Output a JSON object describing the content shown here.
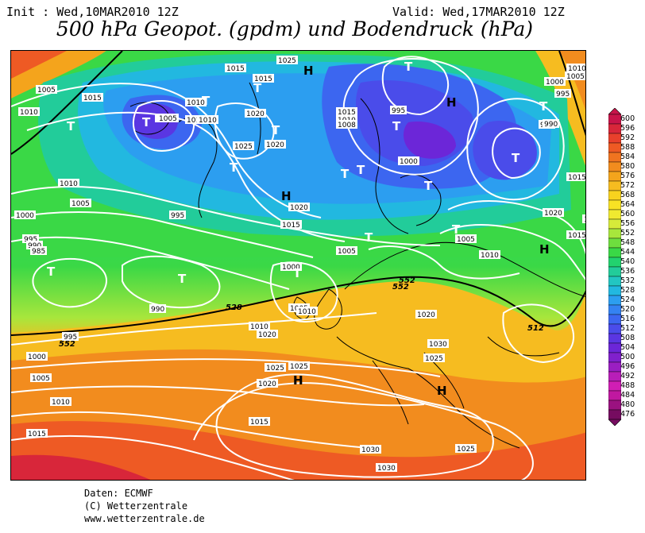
{
  "header": {
    "init": "Init : Wed,10MAR2010 12Z",
    "valid": "Valid: Wed,17MAR2010 12Z",
    "title": "500 hPa Geopot. (gpdm) und Bodendruck (hPa)"
  },
  "credits": [
    "Daten: ECMWF",
    "(C) Wetterzentrale",
    "www.wetterzentrale.de"
  ],
  "colorbar": {
    "labels": [
      "600",
      "596",
      "592",
      "588",
      "584",
      "580",
      "576",
      "572",
      "568",
      "564",
      "560",
      "556",
      "552",
      "548",
      "544",
      "540",
      "536",
      "532",
      "528",
      "524",
      "520",
      "516",
      "512",
      "508",
      "504",
      "500",
      "496",
      "492",
      "488",
      "484",
      "480",
      "476"
    ],
    "colors": [
      "#c8144a",
      "#d8263a",
      "#e8402c",
      "#ee5a24",
      "#f07420",
      "#f28c1e",
      "#f4a41c",
      "#f6bc20",
      "#f8d21e",
      "#f8e224",
      "#f0ea30",
      "#d6ea3a",
      "#a8e63c",
      "#6ede3e",
      "#3ad846",
      "#22d26e",
      "#22cc9a",
      "#22c6c2",
      "#22b8e0",
      "#2c9ef0",
      "#3482f2",
      "#3c66f0",
      "#4a4cea",
      "#5a36e2",
      "#6c26d8",
      "#8020cc",
      "#9a1ec2",
      "#b81eb8",
      "#d01eb4",
      "#c018a0",
      "#9a1280",
      "#760c60"
    ]
  },
  "map_labels": {
    "pressure": [
      "1020",
      "1015",
      "1015",
      "1015",
      "1010",
      "1010",
      "1005",
      "1010",
      "1010",
      "1020",
      "1025",
      "1020",
      "1015",
      "1010",
      "1008",
      "995",
      "1000",
      "990",
      "995",
      "1010",
      "1005",
      "1000",
      "990",
      "1015",
      "1010",
      "1005",
      "1000",
      "995",
      "990",
      "985",
      "1010",
      "1005",
      "1000",
      "995",
      "1020",
      "1015",
      "1020",
      "1015",
      "1005",
      "1010",
      "1005",
      "1015",
      "1010",
      "1020",
      "1025",
      "1025",
      "1000",
      "1005",
      "1010",
      "1015",
      "1020",
      "990",
      "995",
      "1000",
      "1005",
      "1010",
      "1015",
      "1020",
      "1025",
      "1030",
      "1025",
      "1030",
      "1030",
      "1025"
    ],
    "highs": [
      "H",
      "H",
      "H",
      "H",
      "H",
      "H",
      "H"
    ],
    "lows": [
      "T",
      "T",
      "T",
      "T",
      "T",
      "T",
      "T",
      "T",
      "T",
      "T",
      "T",
      "T",
      "T",
      "T",
      "T",
      "T",
      "T",
      "T"
    ],
    "geopotential": [
      "552",
      "528",
      "552",
      "552",
      "512"
    ]
  }
}
